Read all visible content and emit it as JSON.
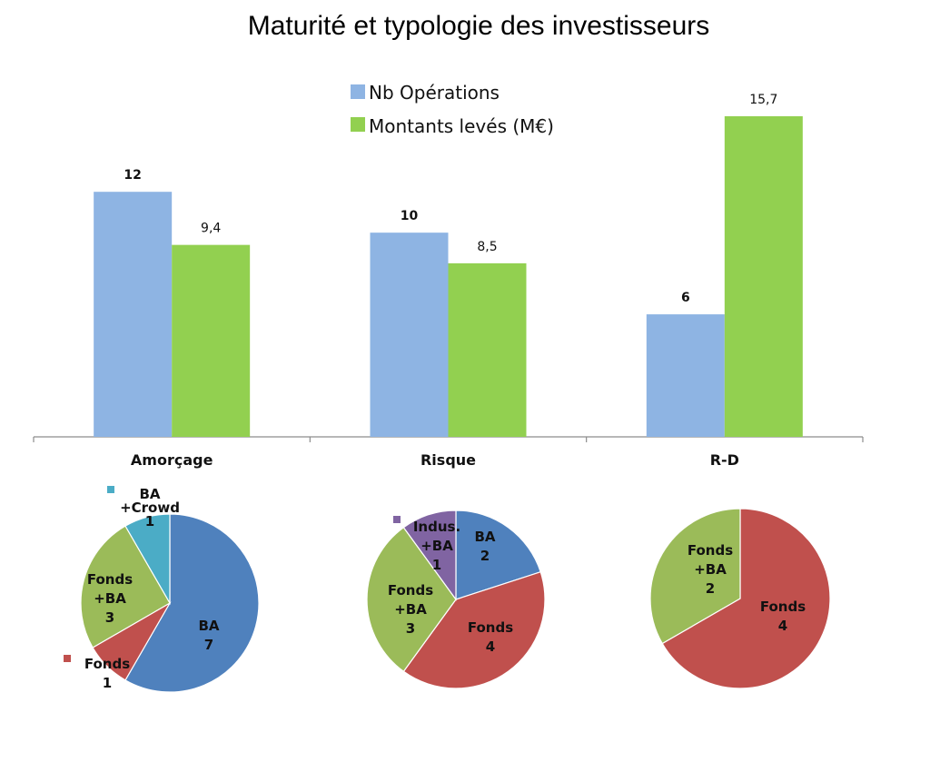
{
  "chart_data": [
    {
      "type": "bar",
      "title": "Maturité et typologie des investisseurs",
      "categories": [
        "Amorçage",
        "Risque",
        "R-D"
      ],
      "ylim": [
        0,
        17
      ],
      "grid": false,
      "legend_position": "top-center",
      "series": [
        {
          "name": "Nb Opérations",
          "color": "#8EB4E3",
          "values": [
            12,
            10,
            6
          ],
          "labels": [
            "12",
            "10",
            "6"
          ]
        },
        {
          "name": "Montants levés (M€)",
          "color": "#92D050",
          "values": [
            9.4,
            8.5,
            15.7
          ],
          "labels": [
            "9,4",
            "8,5",
            "15,7"
          ]
        }
      ]
    },
    {
      "type": "pie",
      "category": "Amorçage",
      "slices": [
        {
          "name": "BA",
          "value": 7,
          "color": "#4F81BD",
          "label_lines": [
            "BA",
            "7"
          ]
        },
        {
          "name": "Fonds",
          "value": 1,
          "color": "#C0504D",
          "label_lines": [
            "Fonds",
            "1"
          ]
        },
        {
          "name": "Fonds +BA",
          "value": 3,
          "color": "#9BBB59",
          "label_lines": [
            "Fonds",
            "+BA",
            "3"
          ]
        },
        {
          "name": "BA +Crowd",
          "value": 1,
          "color": "#4BACC6",
          "label_lines": [
            "BA",
            "+Crowd",
            "1"
          ]
        }
      ]
    },
    {
      "type": "pie",
      "category": "Risque",
      "slices": [
        {
          "name": "BA",
          "value": 2,
          "color": "#4F81BD",
          "label_lines": [
            "BA",
            "2"
          ]
        },
        {
          "name": "Fonds",
          "value": 4,
          "color": "#C0504D",
          "label_lines": [
            "Fonds",
            "4"
          ]
        },
        {
          "name": "Fonds +BA",
          "value": 3,
          "color": "#9BBB59",
          "label_lines": [
            "Fonds",
            "+BA",
            "3"
          ]
        },
        {
          "name": "Indus. +BA",
          "value": 1,
          "color": "#8064A2",
          "label_lines": [
            "Indus.",
            "+BA",
            "1"
          ]
        }
      ]
    },
    {
      "type": "pie",
      "category": "R-D",
      "slices": [
        {
          "name": "Fonds",
          "value": 4,
          "color": "#C0504D",
          "label_lines": [
            "Fonds",
            "4"
          ]
        },
        {
          "name": "Fonds +BA",
          "value": 2,
          "color": "#9BBB59",
          "label_lines": [
            "Fonds",
            "+BA",
            "2"
          ]
        }
      ]
    }
  ]
}
